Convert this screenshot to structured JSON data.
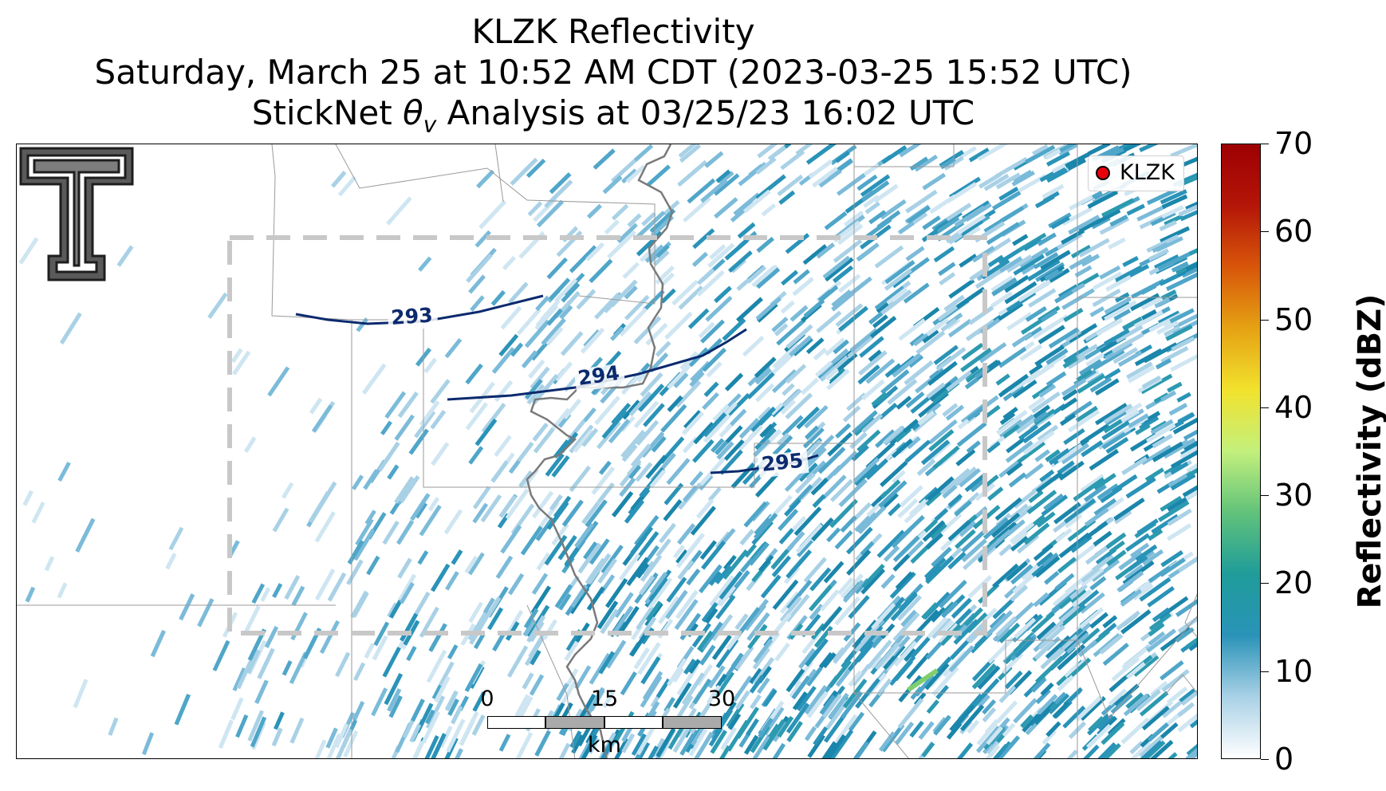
{
  "title": {
    "line1": "KLZK Reflectivity",
    "line2": "Saturday, March 25 at 10:52 AM CDT (2023-03-25 15:52 UTC)",
    "line3_prefix": "StickNet ",
    "line3_symbol": "θ",
    "line3_subscript": "v",
    "line3_suffix": " Analysis at 03/25/23 16:02 UTC"
  },
  "legend": {
    "label": "KLZK",
    "marker_color": "#e8000b"
  },
  "contours": [
    {
      "label": "293",
      "color": "#0c2a6e"
    },
    {
      "label": "294",
      "color": "#0c2a6e"
    },
    {
      "label": "295",
      "color": "#0c2a6e"
    }
  ],
  "scalebar": {
    "ticks": [
      "0",
      "15",
      "30"
    ],
    "unit": "km"
  },
  "colorbar": {
    "label": "Reflectivity (dBZ)",
    "min": 0,
    "max": 70,
    "ticks": [
      "0",
      "10",
      "20",
      "30",
      "40",
      "50",
      "60",
      "70"
    ],
    "colors": [
      "#ffffff",
      "#a9d1e6",
      "#2a93b8",
      "#1f9c9a",
      "#61c27a",
      "#c3f07c",
      "#f2e22d",
      "#e5a213",
      "#d8560a",
      "#b41608",
      "#9d0002"
    ]
  },
  "logo": {
    "icon": "texas-tech-double-t-icon"
  }
}
